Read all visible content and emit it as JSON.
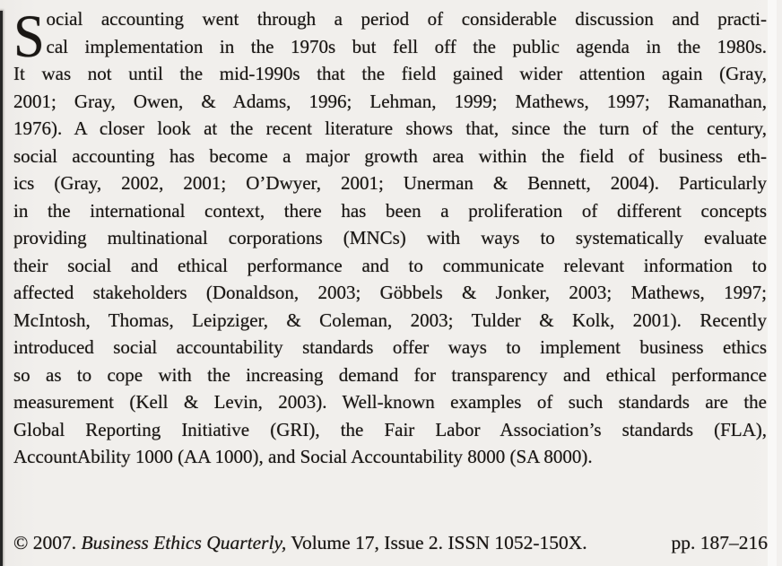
{
  "article": {
    "drop_cap": "S",
    "lines": [
      "ocial accounting went through a period of considerable discussion and practi-",
      "cal implementation in the 1970s but fell off the public agenda in the 1980s.",
      "It was not until the mid-1990s that the field gained wider attention again (Gray,",
      "2001; Gray, Owen, & Adams, 1996; Lehman, 1999; Mathews, 1997; Ramanathan,",
      "1976). A closer look at the recent literature shows that, since the turn of the century,",
      "social accounting has become a major growth area within the field of business eth-",
      "ics (Gray, 2002, 2001; O’Dwyer, 2001; Unerman & Bennett, 2004). Particularly",
      "in the international context, there has been a proliferation of different concepts",
      "providing multinational corporations (MNCs) with ways to systematically evaluate",
      "their social and ethical performance and to communicate relevant information to",
      "affected stakeholders (Donaldson, 2003; Göbbels & Jonker, 2003; Mathews, 1997;",
      "McIntosh, Thomas, Leipziger, & Coleman, 2003; Tulder & Kolk, 2001). Recently",
      "introduced social accountability standards offer ways to implement business ethics",
      "so as to cope with the increasing demand for transparency and ethical performance",
      "measurement (Kell & Levin, 2003). Well-known examples of such standards are the",
      "Global Reporting Initiative (GRI), the Fair Labor Association’s standards (FLA),",
      "AccountAbility 1000 (AA 1000), and Social Accountability 8000 (SA 8000)."
    ]
  },
  "footer": {
    "copyright_prefix": "© 2007. ",
    "journal_title": "Business Ethics Quarterly,",
    "issue_info": " Volume 17, Issue 2. ISSN 1052-150X.",
    "pages": "pp. 187–216"
  },
  "colors": {
    "background": "#f1efec",
    "text": "#1a1714",
    "scan_edge": "#262626"
  }
}
